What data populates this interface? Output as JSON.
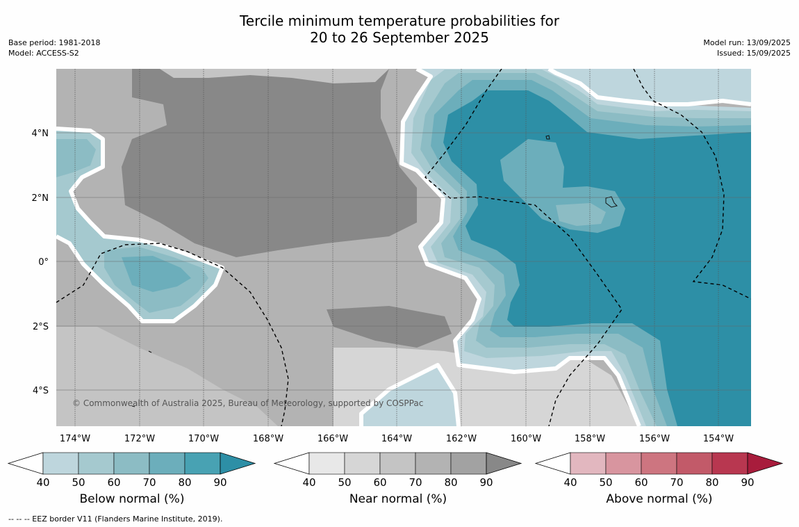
{
  "header": {
    "title_line1": "Tercile minimum temperature probabilities for",
    "title_line2": "20 to 26 September 2025",
    "base_period": "Base period: 1981-2018",
    "model": "Model: ACCESS-S2",
    "model_run": "Model run: 13/09/2025",
    "issued": "Issued: 15/09/2025"
  },
  "map": {
    "lat_labels": [
      "4°N",
      "2°N",
      "0°",
      "2°S",
      "4°S"
    ],
    "lon_labels": [
      "174°W",
      "172°W",
      "170°W",
      "168°W",
      "166°W",
      "164°W",
      "162°W",
      "160°W",
      "158°W",
      "156°W",
      "154°W"
    ],
    "copyright": "© Commonwealth of Australia 2025, Bureau of Meteorology, supported by COSPPac",
    "colors": {
      "below": [
        "#ffffff",
        "#bed6dd",
        "#a5c9cf",
        "#8cbcc4",
        "#6caebb",
        "#48a2b3",
        "#2d8fa6"
      ],
      "near": [
        "#ffffff",
        "#e8e8e8",
        "#d6d6d6",
        "#c4c4c4",
        "#b3b3b3",
        "#a2a2a2",
        "#888888"
      ],
      "above": [
        "#ffffff",
        "#e2b7bf",
        "#d8959f",
        "#cd7580",
        "#c25a69",
        "#b83750",
        "#a81c3c"
      ]
    }
  },
  "legends": [
    {
      "label": "Below normal (%)",
      "ticks": [
        "40",
        "50",
        "60",
        "70",
        "80",
        "90"
      ]
    },
    {
      "label": "Near normal (%)",
      "ticks": [
        "40",
        "50",
        "60",
        "70",
        "80",
        "90"
      ]
    },
    {
      "label": "Above normal (%)",
      "ticks": [
        "40",
        "50",
        "60",
        "70",
        "80",
        "90"
      ]
    }
  ],
  "footnote": "--  --  -- EEZ border V11 (Flanders Marine Institute, 2019)."
}
